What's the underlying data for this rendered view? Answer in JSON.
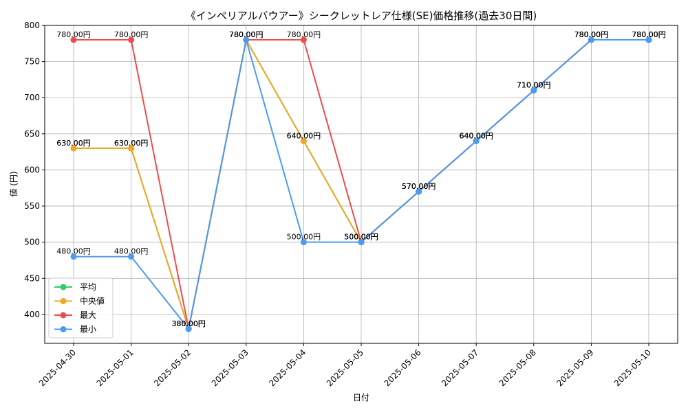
{
  "chart_data": {
    "type": "line",
    "title": "《インペリアルバウアー》シークレットレア仕様(SE)価格推移(過去30日間)",
    "xlabel": "日付",
    "ylabel": "値 (円)",
    "ylim": [
      360,
      800
    ],
    "yticks": [
      400,
      450,
      500,
      550,
      600,
      650,
      700,
      750,
      800
    ],
    "grid": true,
    "legend_position": "lower-left",
    "categories": [
      "2025-04-30",
      "2025-05-01",
      "2025-05-02",
      "2025-05-03",
      "2025-05-04",
      "2025-05-05",
      "2025-05-06",
      "2025-05-07",
      "2025-05-08",
      "2025-05-09",
      "2025-05-10"
    ],
    "series": [
      {
        "name": "平均",
        "color": "#2ecc71",
        "values": [
          630,
          630,
          380,
          780,
          640,
          500,
          570,
          640,
          710,
          780,
          780
        ]
      },
      {
        "name": "中央値",
        "color": "#f5a623",
        "values": [
          630,
          630,
          380,
          780,
          640,
          500,
          570,
          640,
          710,
          780,
          780
        ]
      },
      {
        "name": "最大",
        "color": "#ef4b4b",
        "values": [
          780,
          780,
          380,
          780,
          780,
          500,
          570,
          640,
          710,
          780,
          780
        ]
      },
      {
        "name": "最小",
        "color": "#4a9bf5",
        "values": [
          480,
          480,
          380,
          780,
          500,
          500,
          570,
          640,
          710,
          780,
          780
        ]
      }
    ],
    "label_format": "{v}.00円"
  }
}
